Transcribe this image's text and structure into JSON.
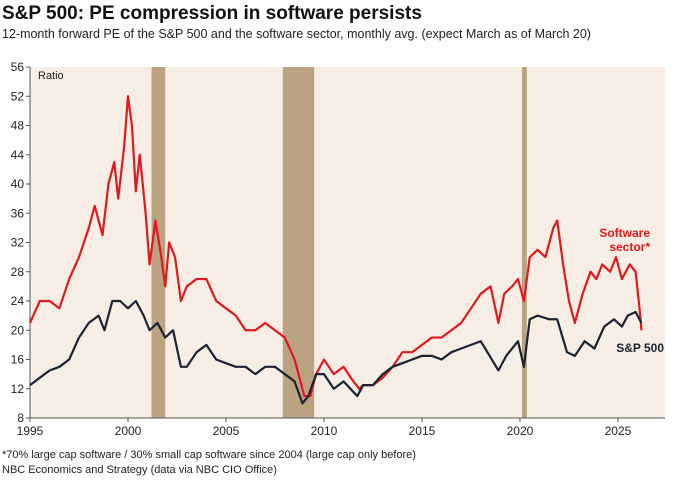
{
  "chart_data": {
    "type": "line",
    "title": "S&P 500: PE compression in software persists",
    "subtitle": "12-month forward PE of the S&P 500 and the software sector, monthly avg. (expect March as of March 20)",
    "y_label": "Ratio",
    "footnotes": [
      "*70% large cap software /  30% small cap software since 2004 (large cap only before)",
      "NBC Economics and Strategy (data via NBC CIO Office)"
    ],
    "xlim": [
      1995,
      2027.4
    ],
    "xticks": [
      1995,
      2000,
      2005,
      2010,
      2015,
      2020,
      2025
    ],
    "ylim": [
      8,
      56
    ],
    "yticks": [
      8,
      12,
      16,
      20,
      24,
      28,
      32,
      36,
      40,
      44,
      48,
      52,
      56
    ],
    "recessions": [
      [
        2001.2,
        2001.9
      ],
      [
        2007.9,
        2009.5
      ],
      [
        2020.1,
        2020.35
      ]
    ],
    "recession_color": "#bba382",
    "background": "#f6eee5",
    "series": [
      {
        "name": "Software sector*",
        "color": "#e0191f",
        "x": [
          1995,
          1995.5,
          1996,
          1996.5,
          1997,
          1997.5,
          1998,
          1998.3,
          1998.7,
          1999,
          1999.3,
          1999.5,
          1999.8,
          2000.0,
          2000.2,
          2000.4,
          2000.6,
          2000.9,
          2001.1,
          2001.4,
          2001.7,
          2001.9,
          2002.1,
          2002.4,
          2002.7,
          2003.0,
          2003.5,
          2004.0,
          2004.5,
          2005,
          2005.5,
          2006,
          2006.5,
          2007,
          2007.5,
          2008,
          2008.5,
          2008.8,
          2009.0,
          2009.3,
          2009.6,
          2010,
          2010.5,
          2011,
          2011.5,
          2011.8,
          2012,
          2012.5,
          2013,
          2013.5,
          2014,
          2014.5,
          2015,
          2015.5,
          2016,
          2016.5,
          2017,
          2017.5,
          2018,
          2018.5,
          2018.9,
          2019.2,
          2019.6,
          2019.9,
          2020.2,
          2020.5,
          2020.9,
          2021.3,
          2021.7,
          2021.9,
          2022.2,
          2022.5,
          2022.8,
          2023.2,
          2023.6,
          2023.9,
          2024.2,
          2024.6,
          2024.9,
          2025.2,
          2025.6,
          2025.9,
          2026.1,
          2026.2
        ],
        "values": [
          21,
          24,
          24,
          23,
          27,
          30,
          34,
          37,
          33,
          40,
          43,
          38,
          45,
          52,
          48,
          39,
          44,
          36,
          29,
          35,
          30,
          26,
          32,
          30,
          24,
          26,
          27,
          27,
          24,
          23,
          22,
          20,
          20,
          21,
          20,
          19,
          16,
          13,
          11,
          11,
          14,
          16,
          14,
          15,
          13,
          12,
          12.5,
          12.5,
          13.5,
          15,
          17,
          17,
          18,
          19,
          19,
          20,
          21,
          23,
          25,
          26,
          21,
          25,
          26,
          27,
          24,
          30,
          31,
          30,
          34,
          35,
          29,
          24,
          21,
          25,
          28,
          27,
          29,
          28,
          30,
          27,
          29,
          28,
          23,
          20
        ]
      },
      {
        "name": "S&P 500",
        "color": "#1b2230",
        "x": [
          1995,
          1995.5,
          1996,
          1996.5,
          1997,
          1997.5,
          1998,
          1998.5,
          1998.8,
          1999.2,
          1999.6,
          2000.0,
          2000.4,
          2000.8,
          2001.1,
          2001.5,
          2001.9,
          2002.3,
          2002.7,
          2003.0,
          2003.5,
          2004.0,
          2004.5,
          2005,
          2005.5,
          2006,
          2006.5,
          2007,
          2007.5,
          2008,
          2008.5,
          2008.9,
          2009.2,
          2009.6,
          2010,
          2010.5,
          2011,
          2011.7,
          2012,
          2012.5,
          2013,
          2013.5,
          2014,
          2014.5,
          2015,
          2015.5,
          2016,
          2016.5,
          2017,
          2017.5,
          2018,
          2018.9,
          2019.3,
          2019.9,
          2020.2,
          2020.5,
          2020.9,
          2021.5,
          2021.9,
          2022.4,
          2022.8,
          2023.3,
          2023.8,
          2024.3,
          2024.8,
          2025.2,
          2025.5,
          2025.9,
          2026.2
        ],
        "values": [
          12.5,
          13.5,
          14.5,
          15,
          16,
          19,
          21,
          22,
          20,
          24,
          24,
          23,
          24,
          22,
          20,
          21,
          19,
          20,
          15,
          15,
          17,
          18,
          16,
          15.5,
          15,
          15,
          14,
          15,
          15,
          14,
          13,
          10,
          11,
          14,
          14,
          12,
          13,
          11,
          12.5,
          12.5,
          14,
          15,
          15.5,
          16,
          16.5,
          16.5,
          16,
          17,
          17.5,
          18,
          18.5,
          14.5,
          16.5,
          18.5,
          15,
          21.5,
          22,
          21.5,
          21.5,
          17,
          16.5,
          18.5,
          17.5,
          20.5,
          21.5,
          20.5,
          22,
          22.5,
          21
        ]
      }
    ]
  }
}
